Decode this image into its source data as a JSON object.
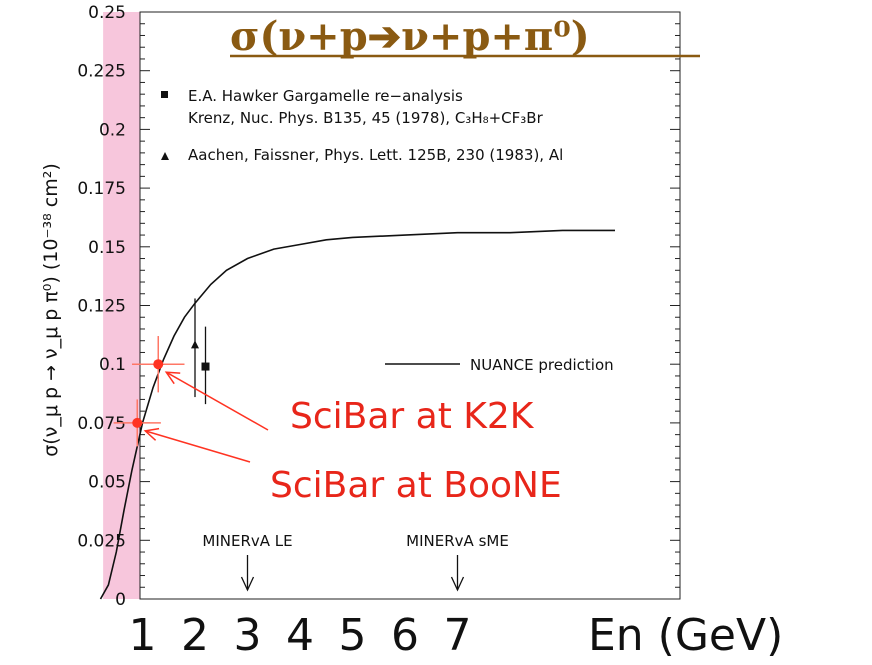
{
  "chart_data": {
    "type": "line",
    "title": "σ(ν+p➔ν+p+π⁰)",
    "ylabel": "σ(ν_μ p → ν_μ p π⁰) (10⁻³⁸ cm²)",
    "xlabel": "En (GeV)",
    "xlim": [
      0,
      10
    ],
    "ylim": [
      0,
      0.25
    ],
    "xticks": [
      "1",
      "2",
      "3",
      "4",
      "5",
      "6",
      "7"
    ],
    "yticks": [
      "0",
      "0.025",
      "0.05",
      "0.075",
      "0.1",
      "0.125",
      "0.15",
      "0.175",
      "0.2",
      "0.225",
      "0.25"
    ],
    "highlight_band": {
      "x0": 0.25,
      "x1": 0.95,
      "color": "#f7c6dc"
    },
    "series": [
      {
        "name": "NUANCE prediction",
        "x": [
          0.2,
          0.35,
          0.5,
          0.65,
          0.8,
          1.0,
          1.2,
          1.4,
          1.6,
          1.8,
          2.0,
          2.3,
          2.6,
          3.0,
          3.5,
          4.0,
          4.5,
          5.0,
          6.0,
          7.0,
          8.0,
          9.0,
          10.0
        ],
        "y": [
          0.0,
          0.006,
          0.02,
          0.038,
          0.055,
          0.075,
          0.09,
          0.102,
          0.112,
          0.12,
          0.126,
          0.134,
          0.14,
          0.145,
          0.149,
          0.151,
          0.153,
          0.154,
          0.155,
          0.156,
          0.156,
          0.157,
          0.157
        ],
        "color": "#111111"
      }
    ],
    "measurements": [
      {
        "label": "E.A. Hawker Gargamelle re−analysis",
        "label2": "Krenz, Nuc. Phys. B135, 45 (1978), C₃H₈+CF₃Br",
        "marker": "square",
        "x": 2.2,
        "y": 0.099,
        "yerr_lo": 0.016,
        "yerr_hi": 0.017
      },
      {
        "label": "Aachen, Faissner, Phys. Lett. 125B, 230 (1983), Al",
        "marker": "triangle",
        "x": 2.0,
        "y": 0.108,
        "yerr_lo": 0.022,
        "yerr_hi": 0.02
      }
    ],
    "projections": [
      {
        "label": "SciBar at K2K",
        "x": 1.3,
        "y": 0.1,
        "xerr": 0.5,
        "yerr": 0.012,
        "color": "#ff3322"
      },
      {
        "label": "SciBar at BooNE",
        "x": 0.9,
        "y": 0.075,
        "xerr": 0.45,
        "yerr": 0.01,
        "color": "#ff3322"
      }
    ],
    "arrows": [
      {
        "label": "MINERvA LE",
        "x": 3
      },
      {
        "label": "MINERvA sME",
        "x": 7
      }
    ],
    "legend_placement": "top-left",
    "grid": false
  }
}
